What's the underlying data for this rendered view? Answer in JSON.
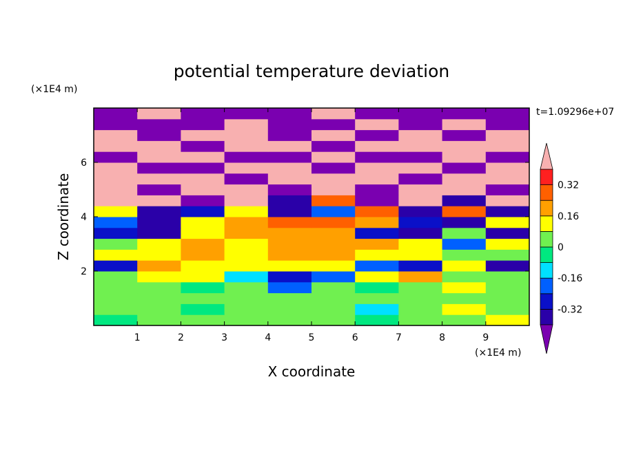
{
  "chart_data": {
    "type": "heatmap",
    "title": "potential temperature deviation",
    "xlabel": "X coordinate",
    "ylabel": "Z coordinate",
    "x_unit": "(×1E4 m)",
    "y_unit": "(×1E4 m)",
    "time_label": "t=1.09296e+07",
    "xlim": [
      0,
      10
    ],
    "ylim": [
      0,
      8
    ],
    "x_ticks": [
      "1",
      "2",
      "3",
      "4",
      "5",
      "6",
      "7",
      "8",
      "9"
    ],
    "y_ticks": [
      "2",
      "4",
      "6"
    ],
    "colorbar": {
      "levels": [
        -0.48,
        -0.4,
        -0.32,
        -0.24,
        -0.16,
        -0.08,
        0,
        0.08,
        0.16,
        0.24,
        0.32,
        0.4,
        0.48
      ],
      "colors": [
        "#7a00b0",
        "#2a00a8",
        "#0a10c8",
        "#0060ff",
        "#00e0ff",
        "#00e880",
        "#70f050",
        "#ffff00",
        "#ffa000",
        "#ff6000",
        "#ff2020",
        "#f8b0b0"
      ],
      "labels": [
        "0.32",
        "0.16",
        "0",
        "-0.16",
        "-0.32"
      ],
      "extend": "both"
    },
    "field_rows": [
      {
        "z": 0.2,
        "values": [
          -0.02,
          0.02,
          0.05,
          0.03,
          0.04,
          0.02,
          -0.03,
          0.05,
          0.04,
          0.08
        ]
      },
      {
        "z": 0.6,
        "values": [
          0.02,
          0.03,
          -0.08,
          0.04,
          0.06,
          0.03,
          -0.1,
          0.02,
          0.08,
          0.05
        ]
      },
      {
        "z": 1.0,
        "values": [
          0.04,
          0.02,
          0.04,
          0.05,
          0.03,
          0.05,
          0.02,
          0.04,
          0.03,
          0.06
        ]
      },
      {
        "z": 1.4,
        "values": [
          0.03,
          0.02,
          -0.06,
          0.03,
          -0.18,
          0.02,
          -0.05,
          0.03,
          0.1,
          0.04
        ]
      },
      {
        "z": 1.8,
        "values": [
          0.05,
          0.12,
          0.1,
          -0.1,
          -0.32,
          -0.2,
          0.15,
          0.2,
          0.05,
          0.02
        ]
      },
      {
        "z": 2.2,
        "values": [
          -0.3,
          0.2,
          0.1,
          0.12,
          0.14,
          0.1,
          -0.2,
          -0.3,
          0.1,
          -0.35
        ]
      },
      {
        "z": 2.6,
        "values": [
          0.1,
          0.12,
          0.18,
          0.15,
          0.16,
          0.2,
          0.12,
          0.1,
          0.06,
          0.05
        ]
      },
      {
        "z": 3.0,
        "values": [
          0.02,
          0.1,
          0.2,
          0.15,
          0.22,
          0.2,
          0.18,
          0.12,
          -0.2,
          0.1
        ]
      },
      {
        "z": 3.4,
        "values": [
          -0.3,
          -0.4,
          0.1,
          0.18,
          0.2,
          0.16,
          -0.3,
          -0.35,
          0.05,
          -0.4
        ]
      },
      {
        "z": 3.8,
        "values": [
          -0.2,
          -0.36,
          0.1,
          0.2,
          0.3,
          0.26,
          0.2,
          -0.3,
          -0.38,
          0.1
        ]
      },
      {
        "z": 4.2,
        "values": [
          0.1,
          -0.4,
          -0.3,
          0.1,
          -0.38,
          -0.2,
          0.25,
          -0.35,
          0.3,
          -0.4
        ]
      },
      {
        "z": 4.6,
        "values": [
          0.4,
          0.42,
          -0.45,
          0.42,
          -0.4,
          0.3,
          -0.46,
          0.4,
          -0.4,
          0.42
        ]
      },
      {
        "z": 5.0,
        "values": [
          0.45,
          -0.48,
          0.45,
          0.45,
          -0.48,
          0.45,
          -0.48,
          0.45,
          0.45,
          -0.48
        ]
      },
      {
        "z": 5.4,
        "values": [
          0.45,
          0.45,
          0.45,
          -0.48,
          0.45,
          0.45,
          0.45,
          -0.48,
          0.45,
          0.45
        ]
      },
      {
        "z": 5.8,
        "values": [
          0.45,
          -0.48,
          -0.48,
          0.45,
          0.45,
          -0.48,
          0.45,
          0.45,
          -0.48,
          0.45
        ]
      },
      {
        "z": 6.2,
        "values": [
          -0.48,
          0.45,
          0.45,
          -0.48,
          -0.48,
          0.45,
          -0.48,
          -0.48,
          0.45,
          -0.48
        ]
      },
      {
        "z": 6.6,
        "values": [
          0.45,
          0.45,
          -0.48,
          0.45,
          0.45,
          -0.48,
          0.45,
          0.45,
          0.45,
          0.45
        ]
      },
      {
        "z": 7.0,
        "values": [
          0.45,
          -0.48,
          0.45,
          0.45,
          -0.48,
          0.45,
          -0.48,
          0.45,
          -0.48,
          0.45
        ]
      },
      {
        "z": 7.4,
        "values": [
          -0.48,
          -0.48,
          -0.48,
          0.45,
          -0.48,
          -0.48,
          0.45,
          -0.48,
          0.45,
          -0.48
        ]
      },
      {
        "z": 7.8,
        "values": [
          -0.48,
          0.45,
          -0.48,
          -0.48,
          -0.48,
          0.45,
          -0.48,
          -0.48,
          -0.48,
          -0.48
        ]
      }
    ]
  }
}
